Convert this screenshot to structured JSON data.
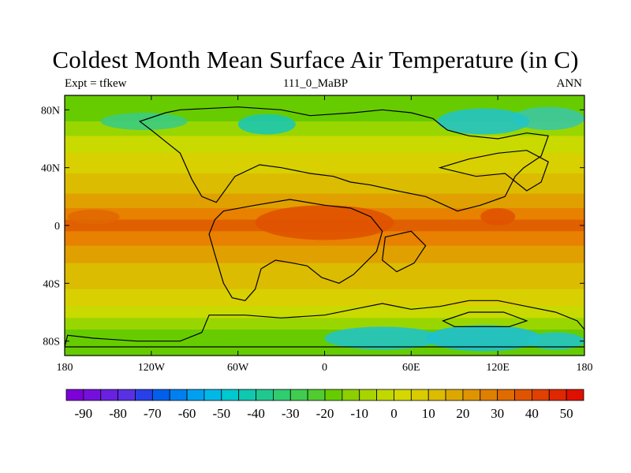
{
  "header": {
    "title": "Coldest Month Mean Surface Air Temperature (in C)",
    "left_label": "Expt = tfkew",
    "center_label": "111_0_MaBP",
    "right_label": "ANN"
  },
  "map": {
    "lon_ticks": [
      "180",
      "120W",
      "60W",
      "0",
      "60E",
      "120E",
      "180"
    ],
    "lat_ticks": [
      "80N",
      "40N",
      "0",
      "40S",
      "80S"
    ],
    "bands": [
      {
        "lat": 90,
        "color": "#66cc00"
      },
      {
        "lat": 80,
        "color": "#66cc00"
      },
      {
        "lat": 72,
        "color": "#99d600"
      },
      {
        "lat": 62,
        "color": "#c8da00"
      },
      {
        "lat": 50,
        "color": "#d8d000"
      },
      {
        "lat": 36,
        "color": "#dcbc00"
      },
      {
        "lat": 22,
        "color": "#e0a000"
      },
      {
        "lat": 12,
        "color": "#e88000"
      },
      {
        "lat": 4,
        "color": "#e06000"
      },
      {
        "lat": -4,
        "color": "#e88000"
      },
      {
        "lat": -14,
        "color": "#e0a000"
      },
      {
        "lat": -26,
        "color": "#dcbc00"
      },
      {
        "lat": -44,
        "color": "#d8d000"
      },
      {
        "lat": -56,
        "color": "#c8da00"
      },
      {
        "lat": -64,
        "color": "#99d600"
      },
      {
        "lat": -72,
        "color": "#66cc00"
      },
      {
        "lat": -90,
        "color": "#66cc00"
      }
    ],
    "cold_patches": [
      {
        "lon": 155,
        "lat": 74,
        "rlon": 25,
        "rlat": 8,
        "color": "#3cc8a0"
      },
      {
        "lon": 110,
        "lat": 72,
        "rlon": 32,
        "rlat": 9,
        "color": "#22c4c4"
      },
      {
        "lon": -40,
        "lat": 70,
        "rlon": 20,
        "rlat": 7,
        "color": "#1cc8b0"
      },
      {
        "lon": -125,
        "lat": 72,
        "rlon": 30,
        "rlat": 6,
        "color": "#3ccc80"
      },
      {
        "lon": 40,
        "lat": -78,
        "rlon": 40,
        "rlat": 8,
        "color": "#22c4c4"
      },
      {
        "lon": 110,
        "lat": -78,
        "rlon": 40,
        "rlat": 9,
        "color": "#1ec0d0"
      },
      {
        "lon": 160,
        "lat": -80,
        "rlon": 20,
        "rlat": 6,
        "color": "#22c4c4"
      }
    ],
    "hot_patches": [
      {
        "lon": 0,
        "lat": 2,
        "rlon": 48,
        "rlat": 12,
        "color": "#e05200"
      },
      {
        "lon": 120,
        "lat": 6,
        "rlon": 12,
        "rlat": 6,
        "color": "#e05200"
      },
      {
        "lon": -160,
        "lat": 6,
        "rlon": 18,
        "rlat": 5,
        "color": "#e06800"
      }
    ],
    "land_color": "#000000"
  },
  "colorbar": {
    "labels": [
      "-90",
      "-80",
      "-70",
      "-60",
      "-50",
      "-40",
      "-30",
      "-20",
      "-10",
      "0",
      "10",
      "20",
      "30",
      "40",
      "50"
    ],
    "colors": [
      "#7d00d8",
      "#7510dc",
      "#6a20e0",
      "#5a30e4",
      "#2840e8",
      "#0060ec",
      "#0080f0",
      "#00a0f0",
      "#00b8e8",
      "#00c8d0",
      "#10c8b0",
      "#20c890",
      "#30cc70",
      "#40cc50",
      "#50cc30",
      "#66cc00",
      "#8cd000",
      "#a8d400",
      "#c0d800",
      "#d4d800",
      "#d8cc00",
      "#dcbc00",
      "#dca800",
      "#e09400",
      "#e08000",
      "#e06c00",
      "#e05400",
      "#e04000",
      "#e02800",
      "#e01000"
    ]
  }
}
